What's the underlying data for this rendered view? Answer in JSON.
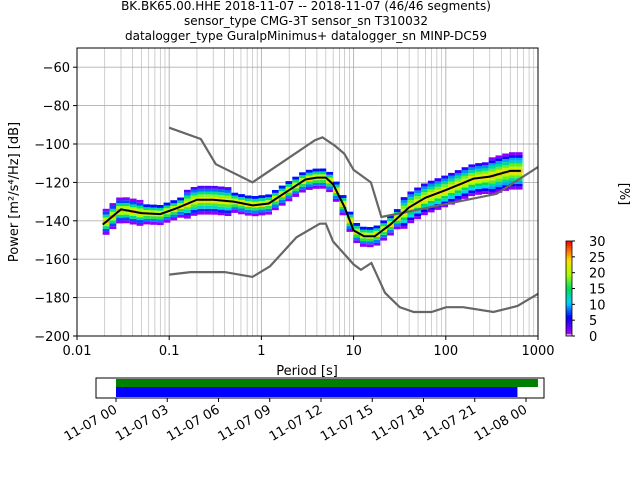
{
  "title": {
    "line1": "BK.BK65.00.HHE   2018-11-07 -- 2018-11-07  (46/46 segments)",
    "line2": "sensor_type CMG-3T sensor_sn T310032",
    "line3": "datalogger_type GuralpMinimus+ datalogger_sn MINP-DC59"
  },
  "chart_data": [
    {
      "type": "heatmap",
      "xscale": "log",
      "xlabel": "Period [s]",
      "ylabel": "Power [m²/s⁴/Hz] [dB]",
      "xlim": [
        0.01,
        1000
      ],
      "ylim": [
        -200,
        -50
      ],
      "xticks": [
        "0.01",
        "0.1",
        "1",
        "10",
        "100",
        "1000"
      ],
      "yticks": [
        "-200",
        "-180",
        "-160",
        "-140",
        "-120",
        "-100",
        "-80",
        "-60"
      ],
      "grid": true,
      "noise_models": {
        "color": "#666666",
        "upper": {
          "x": [
            0.1,
            0.22,
            0.32,
            0.8,
            3.8,
            4.6,
            6.3,
            7.9,
            10,
            15.4,
            20,
            354.8,
            1000
          ],
          "y": [
            -91.5,
            -97.4,
            -110.5,
            -120,
            -98,
            -96.5,
            -101,
            -105,
            -113.5,
            -120,
            -138,
            -126,
            -112
          ]
        },
        "lower": {
          "x": [
            0.1,
            0.17,
            0.4,
            0.8,
            1.24,
            2.4,
            4.3,
            5,
            6,
            10,
            12,
            15.6,
            21.9,
            31.6,
            45,
            70,
            101,
            154,
            328,
            600,
            1000
          ],
          "y": [
            -168,
            -166.7,
            -166.7,
            -169.2,
            -163.7,
            -148.6,
            -141.5,
            -141.5,
            -150.8,
            -162.7,
            -165.5,
            -162,
            -177.5,
            -185,
            -187.5,
            -187.5,
            -185,
            -185,
            -187.5,
            -184.4,
            -178
          ]
        }
      },
      "mean_curve": {
        "x": [
          0.019,
          0.03,
          0.05,
          0.08,
          0.12,
          0.2,
          0.3,
          0.5,
          0.8,
          1.2,
          2,
          3,
          4,
          5,
          6,
          8,
          10,
          13,
          17,
          25,
          40,
          60,
          100,
          150,
          200,
          300,
          500,
          650
        ],
        "y": [
          -142,
          -134,
          -136,
          -136.5,
          -133.5,
          -129,
          -129,
          -130,
          -132,
          -131,
          -124,
          -118.5,
          -117.5,
          -117.5,
          -121,
          -133,
          -145,
          -148,
          -148,
          -142,
          -133,
          -128,
          -124,
          -120.5,
          -118,
          -117,
          -114,
          -114
        ]
      },
      "colorbar": {
        "label": "[%]",
        "min": 0,
        "max": 30,
        "ticks": [
          "0",
          "5",
          "10",
          "15",
          "20",
          "25",
          "30"
        ],
        "colormap": "pqlx"
      }
    },
    {
      "type": "timeline",
      "time_ticks": [
        "11-07 00",
        "11-07 03",
        "11-07 06",
        "11-07 09",
        "11-07 12",
        "11-07 15",
        "11-07 18",
        "11-07 21",
        "11-08 00"
      ],
      "series": [
        {
          "name": "",
          "color": "#008000",
          "start_hours": 0,
          "end_hours": 24.7
        },
        {
          "name": "",
          "color": "#0000ff",
          "start_hours": 0,
          "end_hours": 23.5
        }
      ]
    }
  ]
}
